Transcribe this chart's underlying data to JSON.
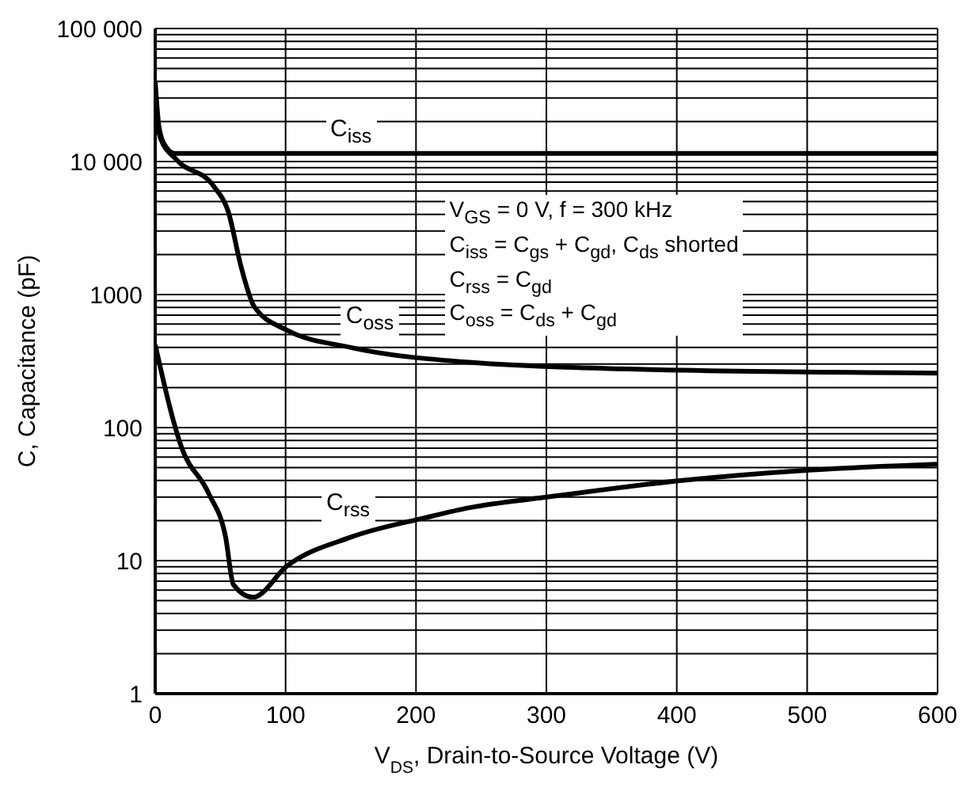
{
  "chart_data": {
    "type": "line",
    "xlabel": "V$_{DS}$, Drain-to-Source Voltage (V)",
    "ylabel": "C, Capacitance (pF)",
    "log": "y",
    "grid": true,
    "marker": "none",
    "line_style": "solid",
    "legend": false,
    "xlim": [
      0,
      600
    ],
    "xticks": [
      0,
      100,
      200,
      300,
      400,
      500,
      600
    ],
    "ylim": [
      1,
      100000
    ],
    "yticks": [
      1,
      {
        "value": 2,
        "label": null
      },
      {
        "value": 3,
        "label": null
      },
      {
        "value": 4,
        "label": null
      },
      {
        "value": 5,
        "label": null
      },
      {
        "value": 6,
        "label": null
      },
      {
        "value": 7,
        "label": null
      },
      {
        "value": 8,
        "label": null
      },
      {
        "value": 9,
        "label": null
      },
      10,
      {
        "value": 20,
        "label": null
      },
      {
        "value": 30,
        "label": null
      },
      {
        "value": 40,
        "label": null
      },
      {
        "value": 50,
        "label": null
      },
      {
        "value": 60,
        "label": null
      },
      {
        "value": 70,
        "label": null
      },
      {
        "value": 80,
        "label": null
      },
      {
        "value": 90,
        "label": null
      },
      100,
      {
        "value": 200,
        "label": null
      },
      {
        "value": 300,
        "label": null
      },
      {
        "value": 400,
        "label": null
      },
      {
        "value": 500,
        "label": null
      },
      {
        "value": 600,
        "label": null
      },
      {
        "value": 700,
        "label": null
      },
      {
        "value": 800,
        "label": null
      },
      {
        "value": 900,
        "label": null
      },
      1000,
      {
        "value": 2000,
        "label": null
      },
      {
        "value": 3000,
        "label": null
      },
      {
        "value": 4000,
        "label": null
      },
      {
        "value": 5000,
        "label": null
      },
      {
        "value": 6000,
        "label": null
      },
      {
        "value": 7000,
        "label": null
      },
      {
        "value": 8000,
        "label": null
      },
      {
        "value": 9000,
        "label": null
      },
      {
        "value": 10000,
        "label": "10 000"
      },
      {
        "value": 20000,
        "label": null
      },
      {
        "value": 30000,
        "label": null
      },
      {
        "value": 40000,
        "label": null
      },
      {
        "value": 50000,
        "label": null
      },
      {
        "value": 60000,
        "label": null
      },
      {
        "value": 70000,
        "label": null
      },
      {
        "value": 80000,
        "label": null
      },
      {
        "value": 90000,
        "label": null
      },
      {
        "value": 100000,
        "label": "100 000"
      }
    ],
    "series": [
      {
        "name": "C$_{iss}$",
        "color": "#000000",
        "x": [
          0,
          3,
          8,
          15,
          600
        ],
        "values": [
          40000,
          18000,
          13000,
          11500,
          11500
        ]
      },
      {
        "name": "C$_{oss}$",
        "color": "#000000",
        "x": [
          0,
          4,
          16,
          45,
          56,
          66,
          76,
          101,
          150,
          241,
          404,
          600
        ],
        "values": [
          25000,
          15000,
          10400,
          6500,
          4200,
          1600,
          810,
          540,
          400,
          310,
          270,
          257
        ]
      },
      {
        "name": "C$_{rss}$",
        "color": "#000000",
        "x": [
          0,
          20,
          41,
          54,
          60,
          75,
          101,
          150,
          207,
          241,
          300,
          404,
          504,
          600
        ],
        "values": [
          420,
          72,
          32,
          15,
          6.6,
          5.3,
          9.1,
          15,
          21,
          25,
          30,
          40,
          48,
          53
        ]
      }
    ],
    "annotations": [
      "V$_{GS}$ = 0 V, f = 300 kHz",
      "C$_{iss}$ = C$_{gs}$ + C$_{gd}$, C$_{ds}$ shorted",
      "C$_{rss}$ = C$_{gd}$",
      "C$_{oss}$ = C$_{ds}$ + C$_{gd}$"
    ]
  }
}
